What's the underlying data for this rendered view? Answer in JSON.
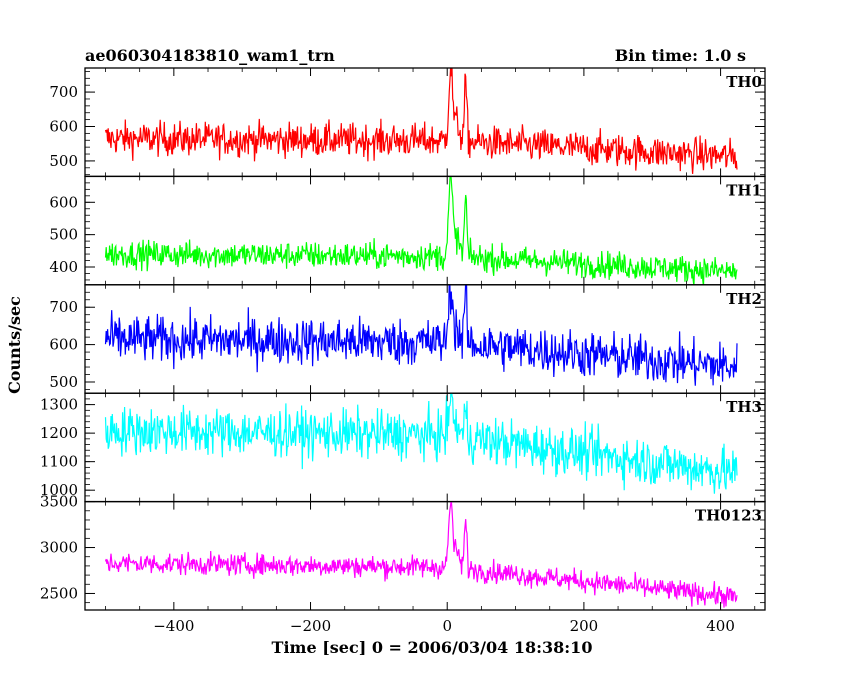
{
  "header": {
    "title": "ae060304183810_wam1_trn",
    "bin_time": "Bin time: 1.0 s"
  },
  "chart_data": {
    "type": "line",
    "xlabel": "Time [sec] 0 = 2006/03/04 18:38:10",
    "ylabel": "Counts/sec",
    "xlim": [
      -530,
      465
    ],
    "x_ticks": [
      "−400",
      "−200",
      "0",
      "200",
      "400"
    ],
    "x_tick_values": [
      -400,
      -200,
      0,
      200,
      400
    ],
    "x_range": [
      -500,
      424
    ],
    "bin": 1.0,
    "event_peaks": [
      5,
      27
    ],
    "panels": [
      {
        "name": "TH0",
        "color": "#ff0000",
        "ylim": [
          455,
          770
        ],
        "y_ticks": [
          500,
          600,
          700
        ],
        "baseline_start": 565,
        "baseline_end": 512,
        "noise": 35,
        "peak1": 765,
        "peak2": 725
      },
      {
        "name": "TH1",
        "color": "#00ff00",
        "ylim": [
          345,
          680
        ],
        "y_ticks": [
          400,
          500,
          600
        ],
        "baseline_start": 440,
        "baseline_end": 385,
        "noise": 30,
        "peak1": 670,
        "peak2": 620
      },
      {
        "name": "TH2",
        "color": "#0000ff",
        "ylim": [
          470,
          760
        ],
        "y_ticks": [
          500,
          600,
          700
        ],
        "baseline_start": 615,
        "baseline_end": 540,
        "noise": 45,
        "peak1": 755,
        "peak2": 750
      },
      {
        "name": "TH3",
        "color": "#00ffff",
        "ylim": [
          960,
          1340
        ],
        "y_ticks": [
          1000,
          1100,
          1200,
          1300
        ],
        "baseline_start": 1210,
        "baseline_end": 1060,
        "noise": 60,
        "peak1": 1340,
        "peak2": 1280
      },
      {
        "name": "TH0123",
        "color": "#ff00ff",
        "ylim": [
          2320,
          3500
        ],
        "y_ticks": [
          2500,
          3000,
          3500
        ],
        "baseline_start": 2830,
        "baseline_end": 2460,
        "noise": 85,
        "peak1": 3480,
        "peak2": 3300
      }
    ]
  }
}
